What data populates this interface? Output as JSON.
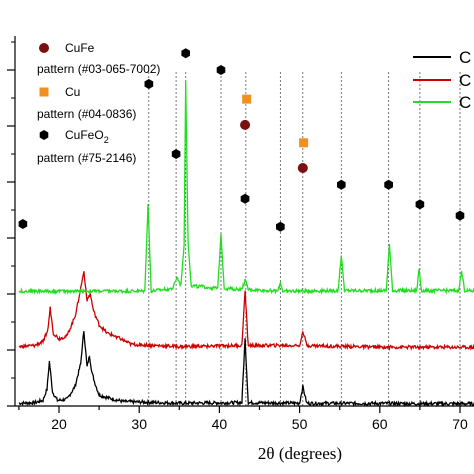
{
  "chart_data": {
    "type": "line",
    "xlabel": "2θ (degrees)",
    "ylabel": "",
    "xlim": [
      15,
      72
    ],
    "x_ticks": [
      "20",
      "30",
      "40",
      "50",
      "60",
      "70"
    ],
    "legend_position": "top-right",
    "series": [
      {
        "name": "C",
        "color": "#000000",
        "baseline": 0.0,
        "points": [
          [
            15,
            0.05
          ],
          [
            17,
            0.06
          ],
          [
            18,
            0.1
          ],
          [
            18.5,
            0.3
          ],
          [
            18.8,
            0.8
          ],
          [
            19.2,
            0.25
          ],
          [
            19.8,
            0.1
          ],
          [
            21,
            0.12
          ],
          [
            22,
            0.35
          ],
          [
            22.7,
            0.75
          ],
          [
            23.1,
            1.35
          ],
          [
            23.5,
            0.7
          ],
          [
            23.8,
            0.9
          ],
          [
            24.1,
            0.6
          ],
          [
            24.5,
            0.4
          ],
          [
            25,
            0.2
          ],
          [
            26,
            0.15
          ],
          [
            28,
            0.08
          ],
          [
            35,
            0.05
          ],
          [
            42.8,
            0.06
          ],
          [
            43.2,
            1.2
          ],
          [
            43.6,
            0.06
          ],
          [
            50,
            0.05
          ],
          [
            50.4,
            0.35
          ],
          [
            50.9,
            0.05
          ],
          [
            72,
            0.04
          ]
        ]
      },
      {
        "name": "C",
        "color": "#cc0000",
        "baseline": 1.0,
        "points": [
          [
            15,
            0.06
          ],
          [
            17,
            0.08
          ],
          [
            18,
            0.15
          ],
          [
            18.6,
            0.35
          ],
          [
            18.9,
            0.75
          ],
          [
            19.3,
            0.3
          ],
          [
            20,
            0.2
          ],
          [
            21,
            0.25
          ],
          [
            22,
            0.6
          ],
          [
            22.7,
            1.1
          ],
          [
            23.1,
            1.4
          ],
          [
            23.5,
            0.9
          ],
          [
            23.9,
            1.0
          ],
          [
            24.3,
            0.7
          ],
          [
            25,
            0.45
          ],
          [
            26,
            0.3
          ],
          [
            27,
            0.25
          ],
          [
            29,
            0.1
          ],
          [
            35,
            0.06
          ],
          [
            42.8,
            0.08
          ],
          [
            43.2,
            1.05
          ],
          [
            43.6,
            0.08
          ],
          [
            50,
            0.08
          ],
          [
            50.4,
            0.35
          ],
          [
            50.9,
            0.08
          ],
          [
            60,
            0.05
          ],
          [
            72,
            0.05
          ]
        ]
      },
      {
        "name": "C",
        "color": "#22dd22",
        "baseline": 2.0,
        "points": [
          [
            15,
            0.05
          ],
          [
            30.7,
            0.05
          ],
          [
            31.1,
            1.6
          ],
          [
            31.5,
            0.05
          ],
          [
            34.2,
            0.1
          ],
          [
            34.7,
            0.3
          ],
          [
            35.2,
            0.15
          ],
          [
            35.6,
            0.9
          ],
          [
            35.8,
            3.8
          ],
          [
            36.1,
            0.9
          ],
          [
            36.5,
            0.15
          ],
          [
            39.8,
            0.1
          ],
          [
            40.2,
            1.08
          ],
          [
            40.6,
            0.1
          ],
          [
            42.8,
            0.08
          ],
          [
            43.2,
            0.25
          ],
          [
            43.6,
            0.08
          ],
          [
            47.3,
            0.05
          ],
          [
            47.6,
            0.2
          ],
          [
            47.9,
            0.05
          ],
          [
            54.8,
            0.06
          ],
          [
            55.2,
            0.7
          ],
          [
            55.6,
            0.06
          ],
          [
            60.8,
            0.06
          ],
          [
            61.2,
            0.88
          ],
          [
            61.6,
            0.06
          ],
          [
            64.6,
            0.06
          ],
          [
            64.9,
            0.45
          ],
          [
            65.2,
            0.06
          ],
          [
            69.8,
            0.06
          ],
          [
            70.2,
            0.4
          ],
          [
            70.6,
            0.06
          ],
          [
            72,
            0.05
          ]
        ]
      }
    ],
    "reference_lines": [
      31.2,
      34.6,
      35.8,
      40.2,
      43.3,
      47.6,
      50.4,
      55.2,
      61.1,
      65.0,
      70.0
    ],
    "reference_markers": [
      {
        "phase": "CuFeO2",
        "x": 15.5,
        "level": 3.25
      },
      {
        "phase": "CuFeO2",
        "x": 31.2,
        "level": 5.75
      },
      {
        "phase": "CuFeO2",
        "x": 34.6,
        "level": 4.5
      },
      {
        "phase": "CuFeO2",
        "x": 35.8,
        "level": 6.3
      },
      {
        "phase": "CuFeO2",
        "x": 40.2,
        "level": 6.0
      },
      {
        "phase": "CuFe",
        "x": 43.2,
        "level": 5.02
      },
      {
        "phase": "Cu",
        "x": 43.4,
        "level": 5.48
      },
      {
        "phase": "CuFeO2",
        "x": 43.2,
        "level": 3.7
      },
      {
        "phase": "CuFeO2",
        "x": 47.6,
        "level": 3.2
      },
      {
        "phase": "Cu",
        "x": 50.5,
        "level": 4.7
      },
      {
        "phase": "CuFe",
        "x": 50.4,
        "level": 4.25
      },
      {
        "phase": "CuFeO2",
        "x": 55.2,
        "level": 3.95
      },
      {
        "phase": "CuFeO2",
        "x": 61.1,
        "level": 3.95
      },
      {
        "phase": "CuFeO2",
        "x": 65.0,
        "level": 3.6
      },
      {
        "phase": "CuFeO2",
        "x": 70.0,
        "level": 3.4
      }
    ],
    "reference_legend": [
      {
        "phase": "CuFe",
        "color": "#7a1010",
        "shape": "circle",
        "name": "CuFe",
        "pattern": "pattern (#03-065-7002)"
      },
      {
        "phase": "Cu",
        "color": "#f0901e",
        "shape": "square",
        "name": "Cu",
        "pattern": "pattern (#04-0836)"
      },
      {
        "phase": "CuFeO2",
        "color": "#000000",
        "shape": "hexagon",
        "name": "CuFeO",
        "subscript": "2",
        "pattern": "pattern (#75-2146)"
      }
    ]
  }
}
